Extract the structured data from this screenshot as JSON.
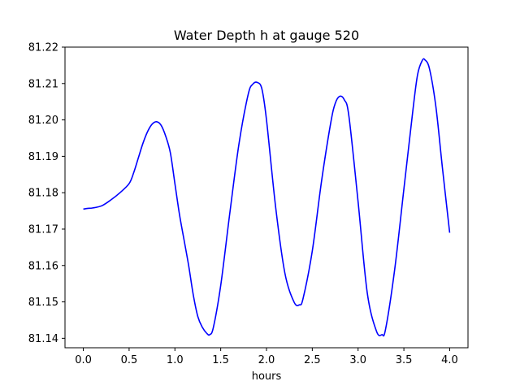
{
  "chart_data": {
    "type": "line",
    "title": "Water Depth h at gauge 520",
    "xlabel": "hours",
    "ylabel": "",
    "xlim": [
      -0.2,
      4.2
    ],
    "ylim": [
      81.1374,
      81.22
    ],
    "grid": false,
    "legend": "none",
    "xticks": [
      0.0,
      0.5,
      1.0,
      1.5,
      2.0,
      2.5,
      3.0,
      3.5,
      4.0
    ],
    "xtick_labels": [
      "0.0",
      "0.5",
      "1.0",
      "1.5",
      "2.0",
      "2.5",
      "3.0",
      "3.5",
      "4.0"
    ],
    "yticks": [
      81.14,
      81.15,
      81.16,
      81.17,
      81.18,
      81.19,
      81.2,
      81.21,
      81.22
    ],
    "ytick_labels": [
      "81.14",
      "81.15",
      "81.16",
      "81.17",
      "81.18",
      "81.19",
      "81.20",
      "81.21",
      "81.22"
    ],
    "series": [
      {
        "color": "#0000ff",
        "x": [
          0.0,
          0.05,
          0.1,
          0.2,
          0.3,
          0.4,
          0.5,
          0.55,
          0.6,
          0.65,
          0.7,
          0.75,
          0.8,
          0.85,
          0.9,
          0.95,
          1.0,
          1.05,
          1.1,
          1.15,
          1.2,
          1.25,
          1.3,
          1.35,
          1.38,
          1.42,
          1.5,
          1.6,
          1.7,
          1.8,
          1.85,
          1.9,
          1.95,
          2.0,
          2.1,
          2.2,
          2.3,
          2.36,
          2.4,
          2.5,
          2.6,
          2.7,
          2.75,
          2.8,
          2.85,
          2.9,
          3.0,
          3.1,
          3.2,
          3.26,
          3.3,
          3.4,
          3.5,
          3.6,
          3.65,
          3.7,
          3.73,
          3.78,
          3.85,
          3.92,
          4.0
        ],
        "y": [
          81.1755,
          81.1757,
          81.1758,
          81.1764,
          81.178,
          81.18,
          81.1825,
          81.1855,
          81.1895,
          81.1935,
          81.1967,
          81.1988,
          81.1995,
          81.1985,
          81.1955,
          81.191,
          81.1825,
          81.174,
          81.167,
          81.16,
          81.152,
          81.146,
          81.143,
          81.1413,
          81.141,
          81.143,
          81.1545,
          81.1745,
          81.1935,
          81.207,
          81.2098,
          81.2103,
          81.2085,
          81.2,
          81.176,
          81.158,
          81.15,
          81.1492,
          81.151,
          81.164,
          81.183,
          81.199,
          81.2045,
          81.2065,
          81.2055,
          81.201,
          81.1775,
          81.1525,
          81.142,
          81.141,
          81.1425,
          81.159,
          81.181,
          81.203,
          81.2125,
          81.2163,
          81.2165,
          81.214,
          81.2035,
          81.187,
          81.169
        ]
      }
    ]
  }
}
